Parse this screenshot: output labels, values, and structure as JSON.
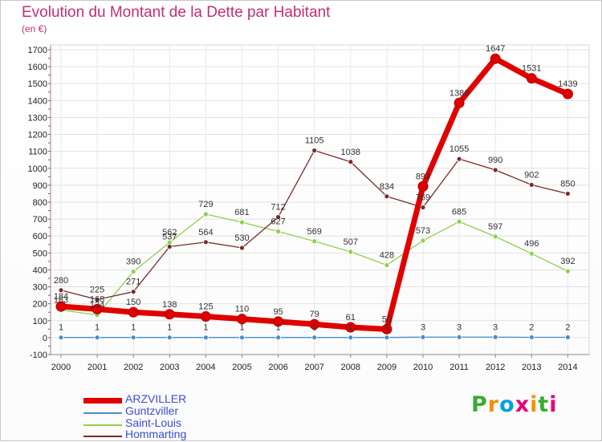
{
  "header": {
    "title": "Evolution du Montant de la Dette par Habitant",
    "unit": "(en €)"
  },
  "logo": {
    "text": "Proxiti",
    "colors": [
      "#f39200",
      "#e5007e",
      "#3aaa35",
      "#009fe3"
    ]
  },
  "chart_data": {
    "type": "line",
    "x": [
      "2000",
      "2001",
      "2002",
      "2003",
      "2004",
      "2005",
      "2006",
      "2007",
      "2008",
      "2009",
      "2010",
      "2011",
      "2012",
      "2013",
      "2014"
    ],
    "ylim": [
      -100,
      1700
    ],
    "yticks": [
      -100,
      0,
      100,
      200,
      300,
      400,
      500,
      600,
      700,
      800,
      900,
      1000,
      1100,
      1200,
      1300,
      1400,
      1500,
      1600,
      1700
    ],
    "grid": true,
    "legend_position": "bottom-left",
    "series": [
      {
        "name": "ARZVILLER",
        "color": "#e00000",
        "values": [
          184,
          168,
          150,
          138,
          125,
          110,
          95,
          79,
          61,
          50,
          893,
          1386,
          1647,
          1531,
          1439
        ]
      },
      {
        "name": "Guntzviller",
        "color": "#4a8ec8",
        "values": [
          1,
          1,
          1,
          1,
          1,
          1,
          1,
          1,
          1,
          1,
          3,
          3,
          3,
          2,
          2
        ]
      },
      {
        "name": "Saint-Louis",
        "color": "#8ed04a",
        "values": [
          163,
          134,
          390,
          562,
          729,
          681,
          627,
          569,
          507,
          428,
          573,
          685,
          597,
          496,
          392
        ]
      },
      {
        "name": "Hommarting",
        "color": "#7a2a2a",
        "values": [
          280,
          225,
          271,
          537,
          564,
          530,
          712,
          1105,
          1038,
          834,
          769,
          1055,
          990,
          902,
          850
        ]
      }
    ]
  }
}
